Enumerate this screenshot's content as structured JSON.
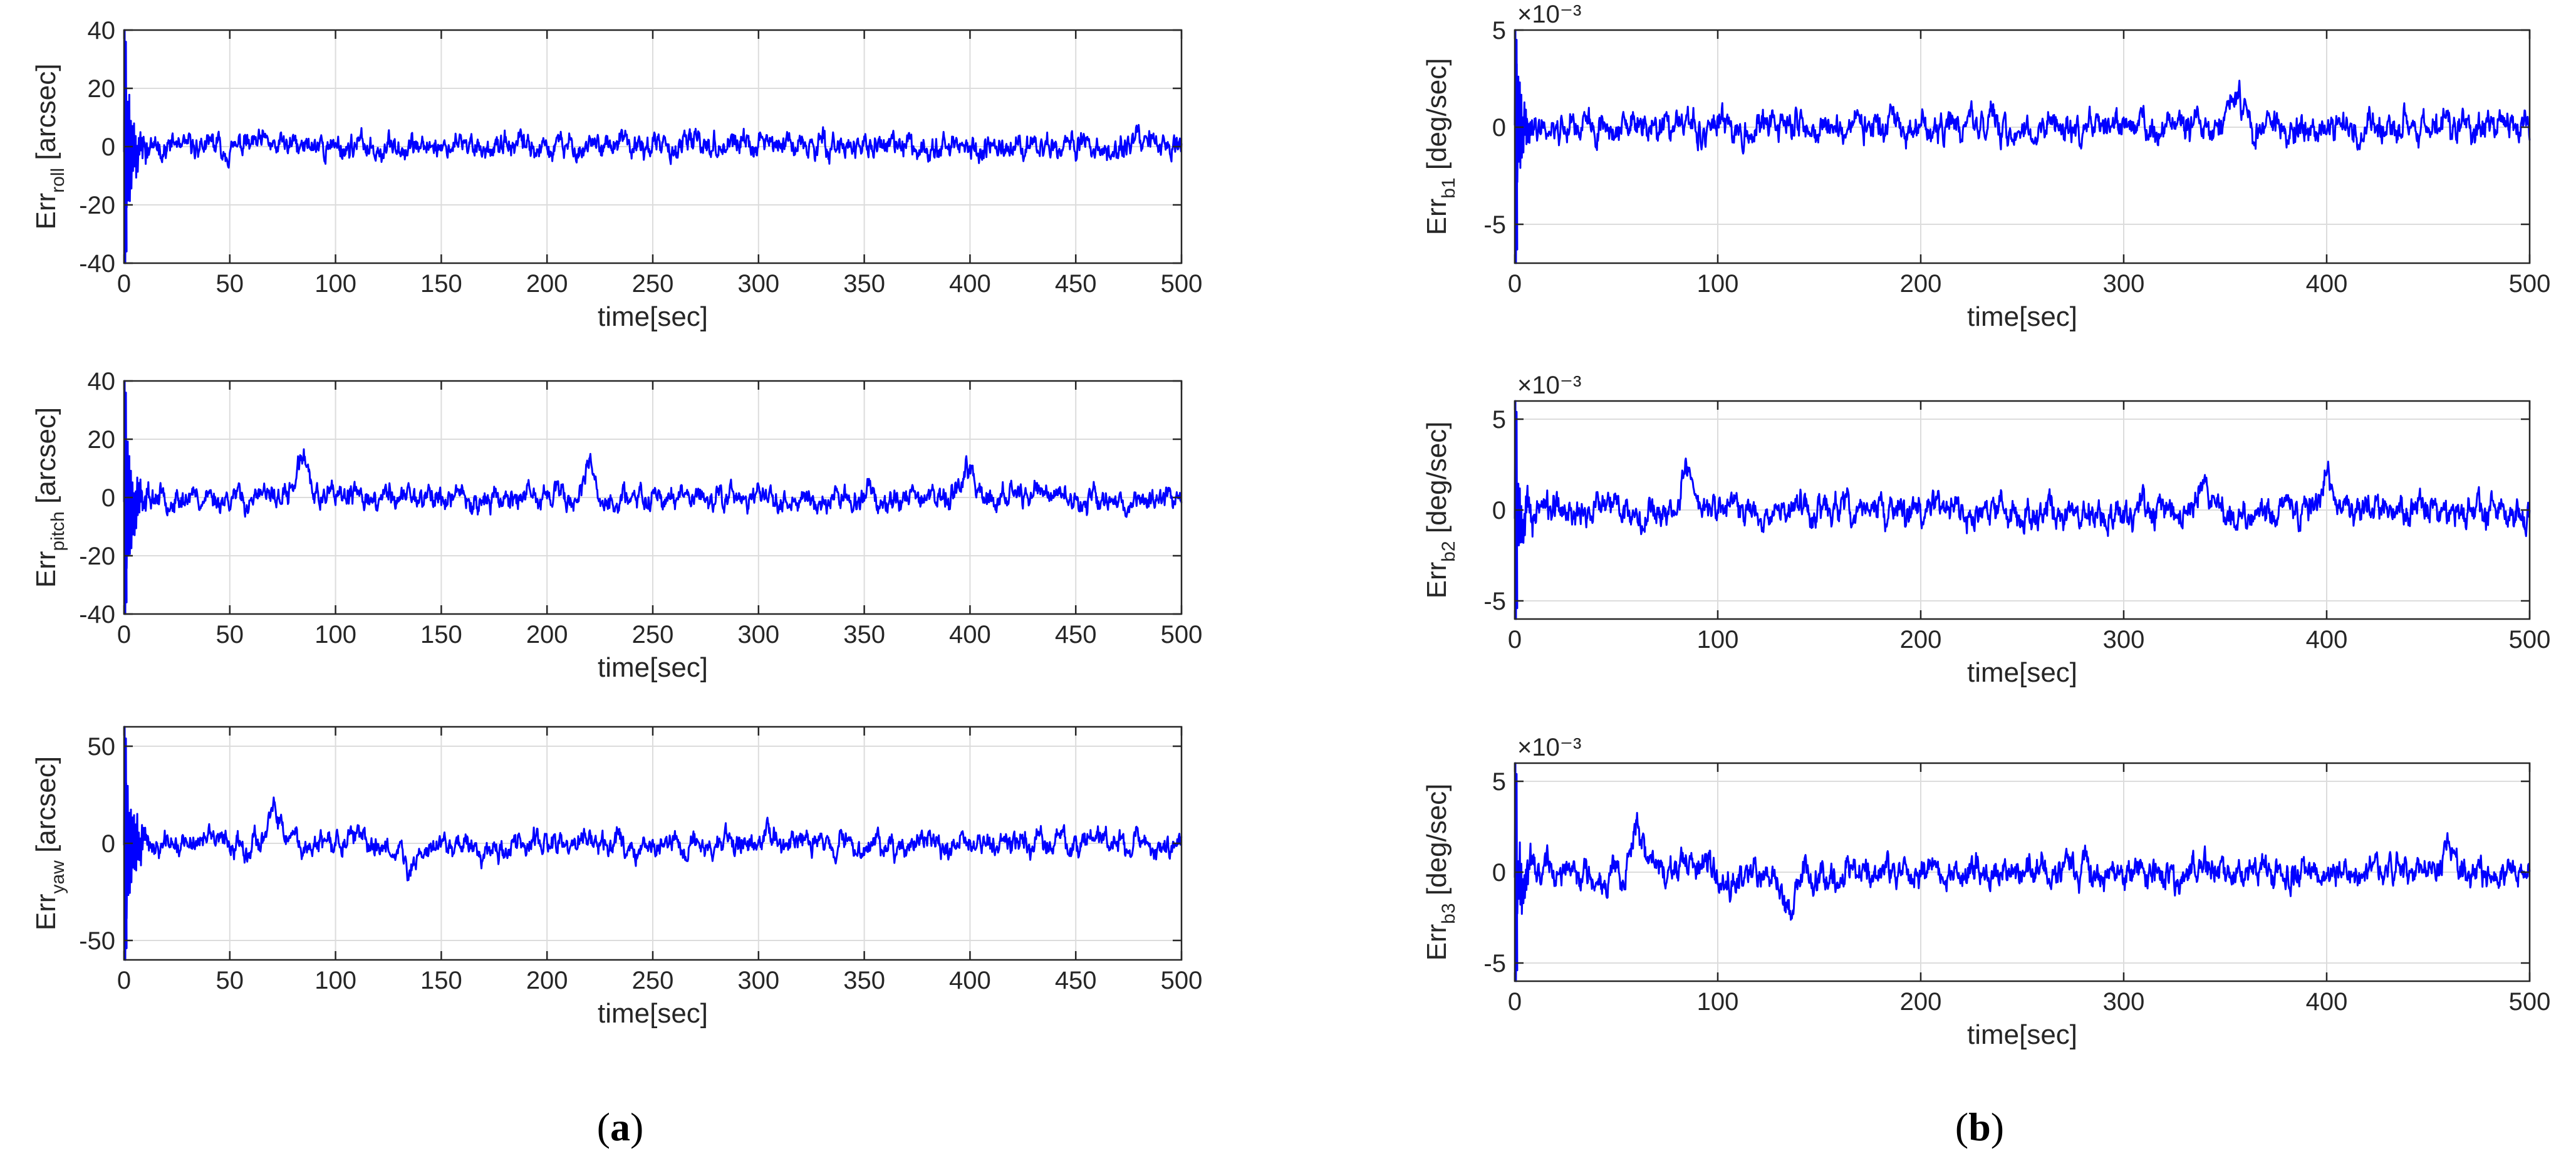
{
  "panel_labels": [
    {
      "open": "(",
      "letter": "a",
      "close": ")"
    },
    {
      "open": "(",
      "letter": "b",
      "close": ")"
    }
  ],
  "colors": {
    "line": "#0000ff",
    "grid": "#dcdcdc",
    "axis": "#262626",
    "background": "#ffffff"
  },
  "chart_data": [
    {
      "type": "line",
      "id": "a1",
      "xlabel": "time[sec]",
      "ylabel_parts": {
        "main": "Err",
        "sub": "roll",
        "rest": " [arcsec]"
      },
      "xlim": [
        0,
        500
      ],
      "ylim": [
        -40,
        40
      ],
      "xticks": [
        0,
        50,
        100,
        150,
        200,
        250,
        300,
        350,
        400,
        450,
        500
      ],
      "yticks": [
        -40,
        -20,
        0,
        20,
        40
      ],
      "scale_label": "",
      "grid": true,
      "series": [
        {
          "noise_amplitude": 6,
          "transient_peak": 40,
          "transient_end_sec": 12,
          "seed": 11,
          "bumps": []
        }
      ]
    },
    {
      "type": "line",
      "id": "a2",
      "xlabel": "time[sec]",
      "ylabel_parts": {
        "main": "Err",
        "sub": "pitch",
        "rest": " [arcsec]"
      },
      "xlim": [
        0,
        500
      ],
      "ylim": [
        -40,
        40
      ],
      "xticks": [
        0,
        50,
        100,
        150,
        200,
        250,
        300,
        350,
        400,
        450,
        500
      ],
      "yticks": [
        -40,
        -20,
        0,
        20,
        40
      ],
      "scale_label": "",
      "grid": true,
      "series": [
        {
          "noise_amplitude": 6,
          "transient_peak": 40,
          "transient_end_sec": 12,
          "seed": 23,
          "bumps": [
            {
              "t": 85,
              "v": 15
            },
            {
              "t": 220,
              "v": 9
            },
            {
              "t": 400,
              "v": 10
            }
          ]
        }
      ]
    },
    {
      "type": "line",
      "id": "a3",
      "xlabel": "time[sec]",
      "ylabel_parts": {
        "main": "Err",
        "sub": "yaw",
        "rest": " [arcsec]"
      },
      "xlim": [
        0,
        500
      ],
      "ylim": [
        -60,
        60
      ],
      "xticks": [
        0,
        50,
        100,
        150,
        200,
        250,
        300,
        350,
        400,
        450,
        500
      ],
      "yticks": [
        -50,
        0,
        50
      ],
      "scale_label": "",
      "grid": true,
      "series": [
        {
          "noise_amplitude": 9,
          "transient_peak": 60,
          "transient_end_sec": 14,
          "seed": 37,
          "bumps": [
            {
              "t": 70,
              "v": 13
            },
            {
              "t": 135,
              "v": -15
            },
            {
              "t": 305,
              "v": 10
            }
          ]
        }
      ]
    },
    {
      "type": "line",
      "id": "b1",
      "xlabel": "time[sec]",
      "ylabel_parts": {
        "main": "Err",
        "sub": "b1",
        "rest": " [deg/sec]"
      },
      "xlim": [
        0,
        500
      ],
      "ylim": [
        -7,
        5
      ],
      "xticks": [
        0,
        100,
        200,
        300,
        400,
        500
      ],
      "yticks": [
        -5,
        0,
        5
      ],
      "scale_label": "×10⁻³",
      "grid": true,
      "series": [
        {
          "noise_amplitude": 1.1,
          "transient_peak": 6,
          "transient_end_sec": 10,
          "seed": 41,
          "bumps": [
            {
              "t": 355,
              "v": 1.8
            }
          ]
        }
      ]
    },
    {
      "type": "line",
      "id": "b2",
      "xlabel": "time[sec]",
      "ylabel_parts": {
        "main": "Err",
        "sub": "b2",
        "rest": " [deg/sec]"
      },
      "xlim": [
        0,
        500
      ],
      "ylim": [
        -6,
        6
      ],
      "xticks": [
        0,
        100,
        200,
        300,
        400,
        500
      ],
      "yticks": [
        -5,
        0,
        5
      ],
      "scale_label": "×10⁻³",
      "grid": true,
      "series": [
        {
          "noise_amplitude": 1.2,
          "transient_peak": 4.5,
          "transient_end_sec": 10,
          "seed": 53,
          "bumps": [
            {
              "t": 85,
              "v": 2.4
            },
            {
              "t": 340,
              "v": 2
            },
            {
              "t": 400,
              "v": 2.1
            }
          ]
        }
      ]
    },
    {
      "type": "line",
      "id": "b3",
      "xlabel": "time[sec]",
      "ylabel_parts": {
        "main": "Err",
        "sub": "b3",
        "rest": " [deg/sec]"
      },
      "xlim": [
        0,
        500
      ],
      "ylim": [
        -6,
        6
      ],
      "xticks": [
        0,
        100,
        200,
        300,
        400,
        500
      ],
      "yticks": [
        -5,
        0,
        5
      ],
      "scale_label": "×10⁻³",
      "grid": true,
      "series": [
        {
          "noise_amplitude": 1.2,
          "transient_peak": 4.5,
          "transient_end_sec": 10,
          "seed": 67,
          "bumps": [
            {
              "t": 60,
              "v": 2.6
            },
            {
              "t": 135,
              "v": -2
            },
            {
              "t": 460,
              "v": 1.9
            }
          ]
        }
      ]
    }
  ]
}
